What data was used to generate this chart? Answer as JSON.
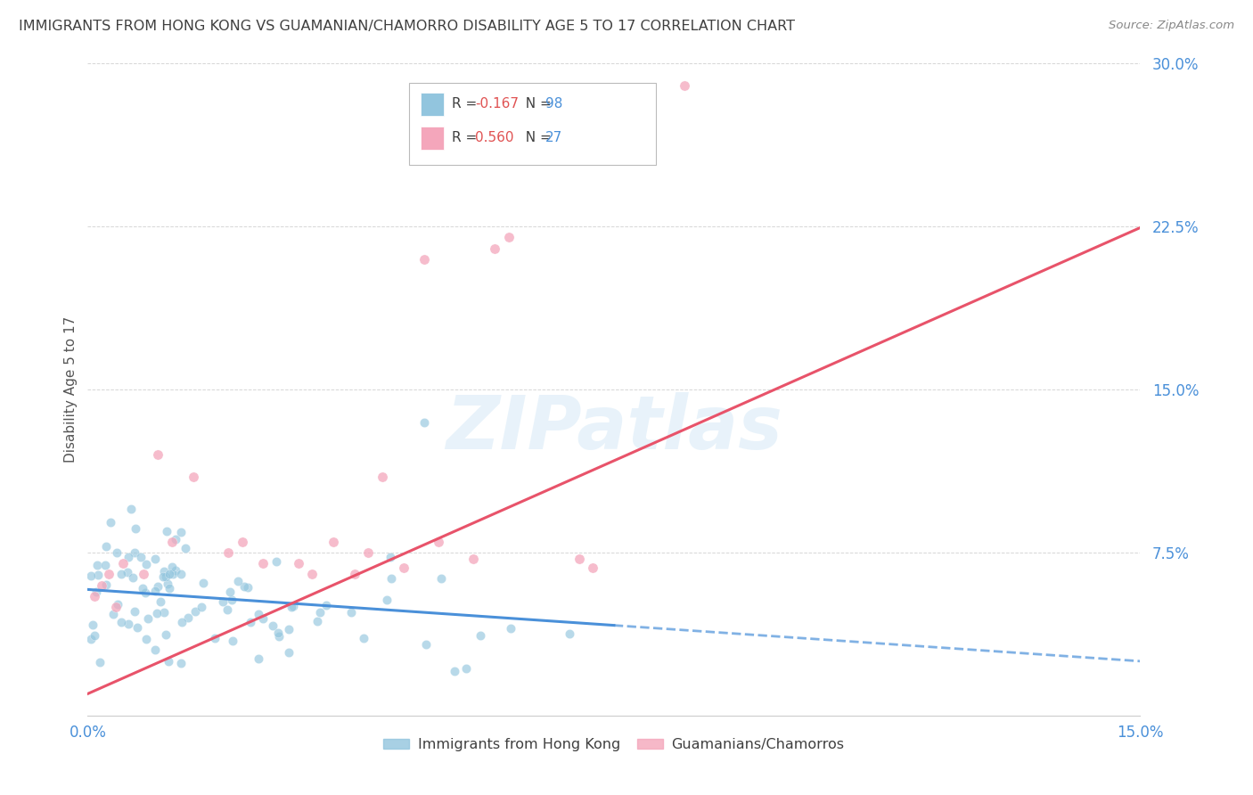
{
  "title": "IMMIGRANTS FROM HONG KONG VS GUAMANIAN/CHAMORRO DISABILITY AGE 5 TO 17 CORRELATION CHART",
  "source": "Source: ZipAtlas.com",
  "ylabel": "Disability Age 5 to 17",
  "xlim": [
    0.0,
    0.15
  ],
  "ylim": [
    0.0,
    0.3
  ],
  "yticks": [
    0.075,
    0.15,
    0.225,
    0.3
  ],
  "ytick_labels": [
    "7.5%",
    "15.0%",
    "22.5%",
    "30.0%"
  ],
  "xticks": [
    0.0,
    0.15
  ],
  "xtick_labels": [
    "0.0%",
    "15.0%"
  ],
  "hk_R": -0.167,
  "hk_N": 98,
  "gc_R": 0.56,
  "gc_N": 27,
  "hk_color": "#92c5de",
  "gc_color": "#f4a6bb",
  "hk_line_color": "#4a90d9",
  "gc_line_color": "#e8536a",
  "background_color": "#ffffff",
  "grid_color": "#cccccc",
  "title_color": "#404040",
  "axis_color": "#4a90d9",
  "watermark": "ZIPatlas",
  "hk_line_intercept": 0.058,
  "hk_line_slope": -0.22,
  "hk_line_solid_end": 0.075,
  "gc_line_intercept": 0.01,
  "gc_line_slope": 1.43,
  "legend_hk_label": "R = -0.167   N = 98",
  "legend_gc_label": "R = 0.560   N = 27",
  "bottom_legend_hk": "Immigrants from Hong Kong",
  "bottom_legend_gc": "Guamanians/Chamorros"
}
